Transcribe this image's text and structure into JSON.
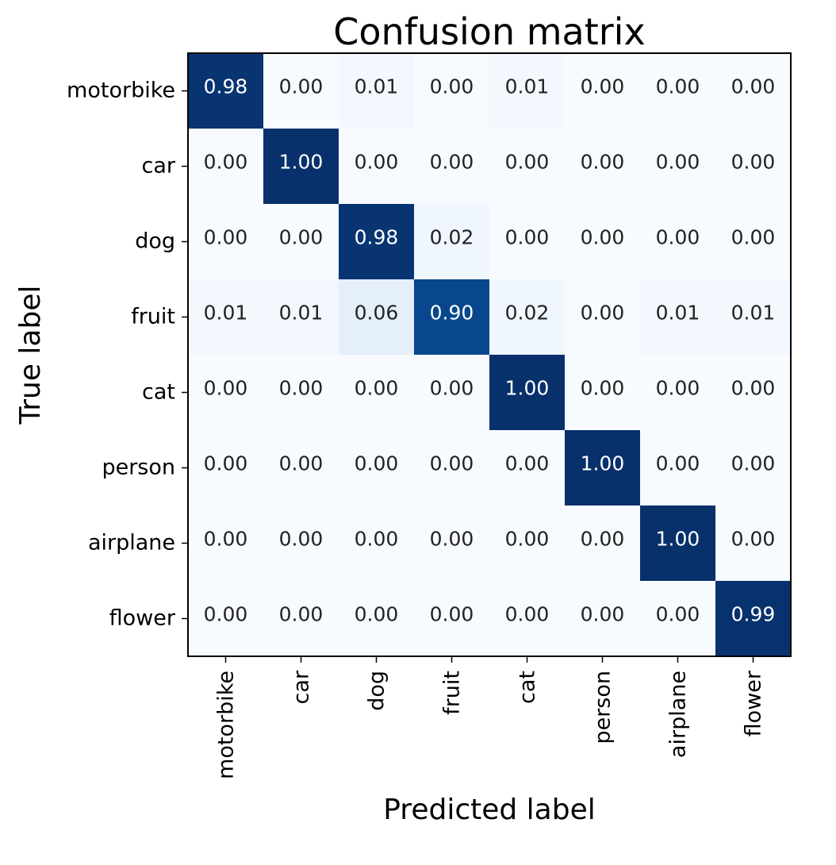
{
  "chart_data": {
    "type": "heatmap",
    "title": "Confusion matrix",
    "xlabel": "Predicted label",
    "ylabel": "True label",
    "row_labels": [
      "motorbike",
      "car",
      "dog",
      "fruit",
      "cat",
      "person",
      "airplane",
      "flower"
    ],
    "col_labels": [
      "motorbike",
      "car",
      "dog",
      "fruit",
      "cat",
      "person",
      "airplane",
      "flower"
    ],
    "values": [
      [
        0.98,
        0.0,
        0.01,
        0.0,
        0.01,
        0.0,
        0.0,
        0.0
      ],
      [
        0.0,
        1.0,
        0.0,
        0.0,
        0.0,
        0.0,
        0.0,
        0.0
      ],
      [
        0.0,
        0.0,
        0.98,
        0.02,
        0.0,
        0.0,
        0.0,
        0.0
      ],
      [
        0.01,
        0.01,
        0.06,
        0.9,
        0.02,
        0.0,
        0.01,
        0.01
      ],
      [
        0.0,
        0.0,
        0.0,
        0.0,
        1.0,
        0.0,
        0.0,
        0.0
      ],
      [
        0.0,
        0.0,
        0.0,
        0.0,
        0.0,
        1.0,
        0.0,
        0.0
      ],
      [
        0.0,
        0.0,
        0.0,
        0.0,
        0.0,
        0.0,
        1.0,
        0.0
      ],
      [
        0.0,
        0.0,
        0.0,
        0.0,
        0.0,
        0.0,
        0.0,
        0.99
      ]
    ],
    "value_format_decimals": 2,
    "colormap": "Blues",
    "vmin": 0,
    "vmax": 1,
    "colors": {
      "low": "#f7fbff",
      "high": "#08306b",
      "text_dark": "#222222",
      "text_light": "#ffffff",
      "frame": "#000000"
    }
  }
}
